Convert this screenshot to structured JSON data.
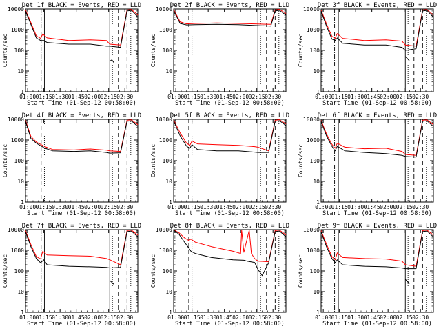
{
  "colors": {
    "events": "#000000",
    "lld": "#ff0000",
    "background": "#ffffff"
  },
  "shared": {
    "xlabel": "Start Time (01-Sep-12 00:58:00)",
    "ylabel": "Counts/sec",
    "x_ticks": [
      "01:00",
      "01:15",
      "01:30",
      "01:45",
      "02:00",
      "02:15",
      "02:30"
    ],
    "y_ticks": [
      "1",
      "10",
      "100",
      "1000",
      "10000"
    ],
    "x_range_minutes_after_start": [
      0,
      104
    ],
    "y_range": [
      1,
      10000
    ],
    "y_scale": "log",
    "series": [
      "Events",
      "LLD"
    ]
  },
  "chart_data": [
    {
      "type": "line",
      "title": "Det 1f BLACK = Events, RED = LLD",
      "events": [
        [
          0,
          8000
        ],
        [
          5,
          1800
        ],
        [
          10,
          400
        ],
        [
          14,
          300
        ],
        [
          17,
          300
        ],
        [
          20,
          240
        ],
        [
          40,
          200
        ],
        [
          60,
          200
        ],
        [
          75,
          160
        ],
        [
          78,
          160
        ],
        [
          88,
          140
        ],
        [
          94,
          8000
        ],
        [
          98,
          8500
        ],
        [
          101,
          6000
        ],
        [
          104,
          4000
        ]
      ],
      "lld": [
        [
          0,
          9000
        ],
        [
          5,
          2200
        ],
        [
          10,
          500
        ],
        [
          14,
          380
        ],
        [
          16,
          620
        ],
        [
          20,
          400
        ],
        [
          40,
          300
        ],
        [
          60,
          320
        ],
        [
          75,
          300
        ],
        [
          78,
          200
        ],
        [
          88,
          180
        ],
        [
          94,
          9000
        ],
        [
          98,
          9500
        ],
        [
          101,
          7000
        ],
        [
          104,
          5000
        ]
      ],
      "events_gap": [
        [
          78,
          30
        ],
        [
          80,
          35
        ],
        [
          82,
          25
        ]
      ],
      "dash_dot": [
        14.5
      ],
      "solid": [
        17.5,
        78.0
      ],
      "dashed": [
        86.0,
        94.0
      ],
      "dotted": [
        80.5,
        97.5
      ]
    },
    {
      "type": "line",
      "title": "Det 2f BLACK = Events, RED = LLD",
      "events": [
        [
          0,
          8500
        ],
        [
          6,
          2000
        ],
        [
          12,
          1700
        ],
        [
          20,
          1750
        ],
        [
          40,
          1800
        ],
        [
          60,
          1750
        ],
        [
          75,
          1600
        ],
        [
          90,
          1500
        ],
        [
          94,
          8000
        ],
        [
          98,
          8600
        ],
        [
          104,
          5000
        ]
      ],
      "lld": [
        [
          0,
          9500
        ],
        [
          6,
          2400
        ],
        [
          12,
          1900
        ],
        [
          20,
          2000
        ],
        [
          40,
          2100
        ],
        [
          60,
          2000
        ],
        [
          75,
          1900
        ],
        [
          90,
          1800
        ],
        [
          94,
          9000
        ],
        [
          98,
          9600
        ],
        [
          104,
          6000
        ]
      ],
      "events_gap": [],
      "dash_dot": [],
      "solid": [
        78.0
      ],
      "dashed": [
        14.0,
        86.0,
        94.0
      ],
      "dotted": [
        17.0,
        80.5,
        97.5
      ]
    },
    {
      "type": "line",
      "title": "Det 3f BLACK = Events, RED = LLD",
      "events": [
        [
          0,
          8000
        ],
        [
          5,
          1500
        ],
        [
          10,
          350
        ],
        [
          13,
          300
        ],
        [
          15,
          400
        ],
        [
          20,
          220
        ],
        [
          40,
          180
        ],
        [
          60,
          180
        ],
        [
          75,
          140
        ],
        [
          78,
          100
        ],
        [
          88,
          120
        ],
        [
          94,
          8000
        ],
        [
          98,
          8500
        ],
        [
          104,
          4000
        ]
      ],
      "lld": [
        [
          0,
          9000
        ],
        [
          5,
          1900
        ],
        [
          10,
          480
        ],
        [
          13,
          380
        ],
        [
          15,
          650
        ],
        [
          20,
          380
        ],
        [
          40,
          300
        ],
        [
          60,
          320
        ],
        [
          75,
          280
        ],
        [
          78,
          180
        ],
        [
          88,
          160
        ],
        [
          94,
          9000
        ],
        [
          98,
          9500
        ],
        [
          104,
          5000
        ]
      ],
      "events_gap": [
        [
          78,
          50
        ],
        [
          80,
          40
        ],
        [
          82,
          30
        ]
      ],
      "dash_dot": [
        12.5
      ],
      "solid": [
        16.0,
        78.0
      ],
      "dashed": [
        86.0,
        94.0
      ],
      "dotted": [
        80.5,
        97.5
      ]
    },
    {
      "type": "line",
      "title": "Det 4f BLACK = Events, RED = LLD",
      "events": [
        [
          0,
          8000
        ],
        [
          5,
          1200
        ],
        [
          10,
          700
        ],
        [
          18,
          400
        ],
        [
          25,
          300
        ],
        [
          45,
          280
        ],
        [
          60,
          300
        ],
        [
          75,
          250
        ],
        [
          78,
          230
        ],
        [
          88,
          240
        ],
        [
          94,
          8000
        ],
        [
          98,
          8500
        ],
        [
          104,
          4500
        ]
      ],
      "lld": [
        [
          0,
          9000
        ],
        [
          5,
          1500
        ],
        [
          10,
          800
        ],
        [
          18,
          480
        ],
        [
          25,
          350
        ],
        [
          45,
          330
        ],
        [
          60,
          370
        ],
        [
          75,
          320
        ],
        [
          78,
          300
        ],
        [
          88,
          280
        ],
        [
          94,
          9000
        ],
        [
          98,
          9500
        ],
        [
          104,
          5500
        ]
      ],
      "events_gap": [],
      "dash_dot": [],
      "solid": [
        78.0
      ],
      "dashed": [
        14.5,
        86.0,
        94.0
      ],
      "dotted": [
        17.5,
        80.5,
        97.5
      ]
    },
    {
      "type": "line",
      "title": "Det 5f BLACK = Events, RED = LLD",
      "events": [
        [
          0,
          8500
        ],
        [
          6,
          1600
        ],
        [
          12,
          500
        ],
        [
          15,
          400
        ],
        [
          17,
          600
        ],
        [
          22,
          350
        ],
        [
          40,
          300
        ],
        [
          60,
          300
        ],
        [
          75,
          260
        ],
        [
          78,
          250
        ],
        [
          88,
          250
        ],
        [
          94,
          8000
        ],
        [
          98,
          8600
        ],
        [
          104,
          5000
        ]
      ],
      "lld": [
        [
          0,
          9500
        ],
        [
          6,
          2200
        ],
        [
          12,
          700
        ],
        [
          15,
          550
        ],
        [
          17,
          900
        ],
        [
          22,
          650
        ],
        [
          40,
          600
        ],
        [
          60,
          550
        ],
        [
          75,
          480
        ],
        [
          78,
          450
        ],
        [
          88,
          300
        ],
        [
          94,
          9000
        ],
        [
          98,
          9600
        ],
        [
          104,
          6000
        ]
      ],
      "events_gap": [],
      "dash_dot": [],
      "solid": [
        78.0
      ],
      "dashed": [
        14.0,
        86.0,
        94.0
      ],
      "dotted": [
        17.0,
        80.5,
        97.5
      ]
    },
    {
      "type": "line",
      "title": "Det 6f BLACK = Events, RED = LLD",
      "events": [
        [
          0,
          8000
        ],
        [
          5,
          1600
        ],
        [
          10,
          500
        ],
        [
          13,
          300
        ],
        [
          15,
          500
        ],
        [
          22,
          300
        ],
        [
          40,
          250
        ],
        [
          60,
          220
        ],
        [
          75,
          180
        ],
        [
          78,
          160
        ],
        [
          88,
          150
        ],
        [
          94,
          8000
        ],
        [
          98,
          8500
        ],
        [
          104,
          4500
        ]
      ],
      "lld": [
        [
          0,
          9000
        ],
        [
          5,
          2000
        ],
        [
          10,
          620
        ],
        [
          13,
          400
        ],
        [
          15,
          700
        ],
        [
          22,
          450
        ],
        [
          40,
          380
        ],
        [
          60,
          400
        ],
        [
          75,
          280
        ],
        [
          78,
          200
        ],
        [
          88,
          180
        ],
        [
          94,
          9000
        ],
        [
          98,
          9500
        ],
        [
          104,
          5500
        ]
      ],
      "events_gap": [],
      "dash_dot": [
        12.5
      ],
      "solid": [
        16.0,
        78.0
      ],
      "dashed": [
        86.0,
        94.0
      ],
      "dotted": [
        80.5,
        97.5
      ]
    },
    {
      "type": "line",
      "title": "Det 7f BLACK = Events, RED = LLD",
      "events": [
        [
          0,
          8000
        ],
        [
          5,
          1500
        ],
        [
          10,
          400
        ],
        [
          14,
          250
        ],
        [
          17,
          350
        ],
        [
          20,
          200
        ],
        [
          40,
          170
        ],
        [
          60,
          160
        ],
        [
          75,
          150
        ],
        [
          78,
          140
        ],
        [
          88,
          150
        ],
        [
          94,
          8000
        ],
        [
          98,
          8500
        ],
        [
          104,
          4500
        ]
      ],
      "lld": [
        [
          0,
          9000
        ],
        [
          5,
          1900
        ],
        [
          10,
          500
        ],
        [
          14,
          380
        ],
        [
          16,
          900
        ],
        [
          20,
          600
        ],
        [
          40,
          550
        ],
        [
          60,
          520
        ],
        [
          75,
          400
        ],
        [
          78,
          350
        ],
        [
          88,
          200
        ],
        [
          94,
          9000
        ],
        [
          98,
          9500
        ],
        [
          104,
          5500
        ]
      ],
      "events_gap": [
        [
          78,
          35
        ],
        [
          80,
          28
        ],
        [
          82,
          22
        ]
      ],
      "dash_dot": [
        14.5
      ],
      "solid": [
        17.5,
        78.0
      ],
      "dashed": [
        86.0,
        94.0
      ],
      "dotted": [
        80.5,
        97.5
      ]
    },
    {
      "type": "line",
      "title": "Det 8f BLACK = Events, RED = LLD",
      "events": [
        [
          0,
          9500
        ],
        [
          5,
          6000
        ],
        [
          10,
          2500
        ],
        [
          14,
          1300
        ],
        [
          16,
          900
        ],
        [
          20,
          700
        ],
        [
          35,
          450
        ],
        [
          55,
          350
        ],
        [
          65,
          330
        ],
        [
          68,
          300
        ],
        [
          75,
          260
        ],
        [
          78,
          120
        ],
        [
          82,
          60
        ],
        [
          88,
          250
        ],
        [
          94,
          8000
        ],
        [
          98,
          8500
        ],
        [
          104,
          4500
        ]
      ],
      "lld": [
        [
          0,
          9800
        ],
        [
          5,
          7000
        ],
        [
          10,
          4000
        ],
        [
          14,
          3000
        ],
        [
          16,
          3500
        ],
        [
          20,
          2500
        ],
        [
          35,
          1500
        ],
        [
          55,
          900
        ],
        [
          62,
          700
        ],
        [
          63,
          9500
        ],
        [
          65,
          800
        ],
        [
          70,
          9500
        ],
        [
          72,
          700
        ],
        [
          75,
          400
        ],
        [
          78,
          300
        ],
        [
          88,
          280
        ],
        [
          94,
          9000
        ],
        [
          98,
          9500
        ],
        [
          104,
          5500
        ]
      ],
      "events_gap": [],
      "dash_dot": [],
      "solid": [
        78.0
      ],
      "dashed": [
        14.0,
        86.0,
        94.0
      ],
      "dotted": [
        17.0,
        80.5,
        97.5
      ]
    },
    {
      "type": "line",
      "title": "Det 9f BLACK = Events, RED = LLD",
      "events": [
        [
          0,
          8000
        ],
        [
          5,
          1500
        ],
        [
          10,
          400
        ],
        [
          13,
          250
        ],
        [
          15,
          350
        ],
        [
          20,
          200
        ],
        [
          40,
          170
        ],
        [
          60,
          160
        ],
        [
          75,
          140
        ],
        [
          78,
          130
        ],
        [
          88,
          130
        ],
        [
          94,
          8000
        ],
        [
          98,
          8500
        ],
        [
          104,
          4500
        ]
      ],
      "lld": [
        [
          0,
          9000
        ],
        [
          5,
          2000
        ],
        [
          10,
          500
        ],
        [
          13,
          350
        ],
        [
          15,
          750
        ],
        [
          20,
          450
        ],
        [
          40,
          400
        ],
        [
          60,
          380
        ],
        [
          75,
          300
        ],
        [
          78,
          200
        ],
        [
          88,
          170
        ],
        [
          94,
          9000
        ],
        [
          98,
          9500
        ],
        [
          104,
          5500
        ]
      ],
      "events_gap": [
        [
          78,
          40
        ],
        [
          80,
          30
        ],
        [
          82,
          25
        ]
      ],
      "dash_dot": [
        12.5
      ],
      "solid": [
        16.0,
        78.0
      ],
      "dashed": [
        86.0,
        94.0
      ],
      "dotted": [
        80.5,
        97.5
      ]
    }
  ]
}
